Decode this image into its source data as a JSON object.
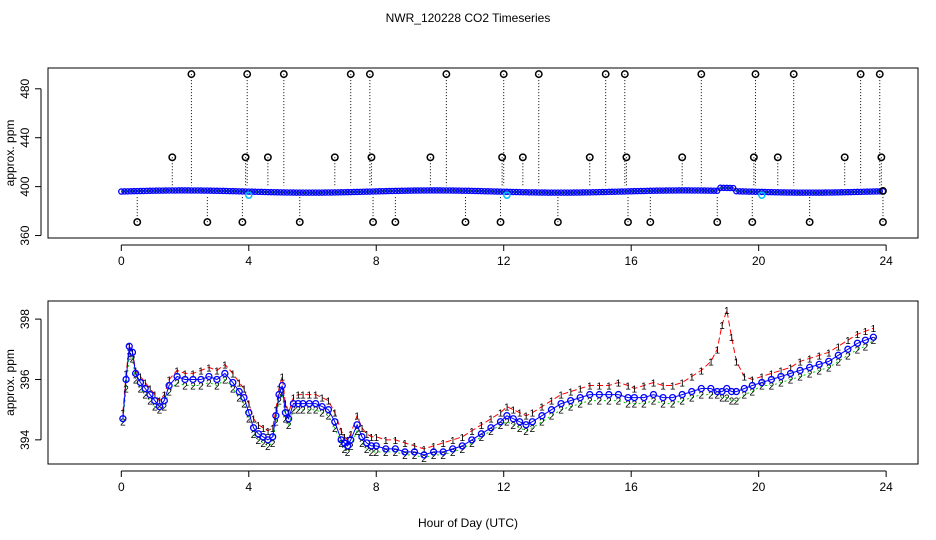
{
  "title": "NWR_120228  CO2 Timeseries",
  "xlabel_shared": "Hour of Day (UTC)",
  "colors": {
    "series1": "#ff0000",
    "series2": "#00cc00",
    "series3": "#0000ff",
    "outlier": "#000000",
    "flag": "#00bfff"
  },
  "chart_data": [
    {
      "type": "line",
      "title": "NWR_120228  CO2 Timeseries",
      "ylabel": "approx. ppm",
      "xlim": [
        -2.3,
        25
      ],
      "ylim": [
        358,
        497
      ],
      "xticks": [
        0,
        4,
        8,
        12,
        16,
        20,
        24
      ],
      "xtick_labels": [
        "0",
        "4",
        "8",
        "12",
        "16",
        "20",
        "24"
      ],
      "yticks": [
        360,
        400,
        440,
        480
      ],
      "ytick_labels": [
        "360",
        "400",
        "440",
        "480"
      ],
      "outlier_baseline": 396,
      "outliers": [
        {
          "x": 0.5,
          "y": 371
        },
        {
          "x": 1.6,
          "y": 424
        },
        {
          "x": 2.2,
          "y": 492
        },
        {
          "x": 2.7,
          "y": 371
        },
        {
          "x": 3.8,
          "y": 371
        },
        {
          "x": 3.9,
          "y": 424
        },
        {
          "x": 3.95,
          "y": 492
        },
        {
          "x": 4.6,
          "y": 424
        },
        {
          "x": 5.1,
          "y": 492
        },
        {
          "x": 5.6,
          "y": 371
        },
        {
          "x": 6.7,
          "y": 424
        },
        {
          "x": 7.2,
          "y": 492
        },
        {
          "x": 7.8,
          "y": 492
        },
        {
          "x": 7.85,
          "y": 424
        },
        {
          "x": 7.9,
          "y": 371
        },
        {
          "x": 8.6,
          "y": 371
        },
        {
          "x": 9.7,
          "y": 424
        },
        {
          "x": 10.2,
          "y": 492
        },
        {
          "x": 10.8,
          "y": 371
        },
        {
          "x": 11.9,
          "y": 371
        },
        {
          "x": 11.95,
          "y": 424
        },
        {
          "x": 12.0,
          "y": 492
        },
        {
          "x": 12.6,
          "y": 424
        },
        {
          "x": 13.1,
          "y": 492
        },
        {
          "x": 13.7,
          "y": 371
        },
        {
          "x": 14.7,
          "y": 424
        },
        {
          "x": 15.2,
          "y": 492
        },
        {
          "x": 15.8,
          "y": 492
        },
        {
          "x": 15.85,
          "y": 424
        },
        {
          "x": 15.9,
          "y": 371
        },
        {
          "x": 16.6,
          "y": 371
        },
        {
          "x": 17.6,
          "y": 424
        },
        {
          "x": 18.2,
          "y": 492
        },
        {
          "x": 18.7,
          "y": 371
        },
        {
          "x": 19.8,
          "y": 371
        },
        {
          "x": 19.85,
          "y": 424
        },
        {
          "x": 19.9,
          "y": 492
        },
        {
          "x": 20.6,
          "y": 424
        },
        {
          "x": 21.1,
          "y": 492
        },
        {
          "x": 21.6,
          "y": 371
        },
        {
          "x": 22.7,
          "y": 424
        },
        {
          "x": 23.2,
          "y": 492
        },
        {
          "x": 23.8,
          "y": 492
        },
        {
          "x": 23.85,
          "y": 424
        },
        {
          "x": 23.9,
          "y": 371
        }
      ],
      "flags": [
        {
          "x": 4.0,
          "y": 393
        },
        {
          "x": 12.1,
          "y": 393
        },
        {
          "x": 20.1,
          "y": 393
        }
      ]
    },
    {
      "type": "line",
      "title": "",
      "ylabel": "approx. ppm",
      "xlabel": "Hour of Day (UTC)",
      "xlim": [
        -2.3,
        25
      ],
      "ylim": [
        393.2,
        398.6
      ],
      "xticks": [
        0,
        4,
        8,
        12,
        16,
        20,
        24
      ],
      "xtick_labels": [
        "0",
        "4",
        "8",
        "12",
        "16",
        "20",
        "24"
      ],
      "yticks": [
        394,
        396,
        398
      ],
      "ytick_labels": [
        "394",
        "396",
        "398"
      ],
      "series_symbols": [
        "1",
        "2",
        "o"
      ],
      "series": [
        {
          "name": "1",
          "x": [
            0.05,
            0.15,
            0.25,
            0.35,
            0.45,
            0.6,
            0.75,
            0.9,
            1.05,
            1.2,
            1.35,
            1.5,
            1.75,
            2.0,
            2.25,
            2.5,
            2.75,
            3.0,
            3.25,
            3.5,
            3.7,
            3.85,
            4.0,
            4.15,
            4.3,
            4.45,
            4.6,
            4.75,
            4.85,
            4.95,
            5.05,
            5.15,
            5.25,
            5.4,
            5.55,
            5.7,
            5.9,
            6.1,
            6.3,
            6.5,
            6.7,
            6.9,
            7.0,
            7.1,
            7.2,
            7.4,
            7.55,
            7.7,
            7.85,
            8.0,
            8.3,
            8.6,
            8.9,
            9.2,
            9.5,
            9.8,
            10.1,
            10.4,
            10.7,
            11.0,
            11.3,
            11.6,
            11.9,
            12.1,
            12.3,
            12.5,
            12.7,
            12.9,
            13.2,
            13.5,
            13.8,
            14.1,
            14.4,
            14.7,
            15.0,
            15.3,
            15.6,
            15.9,
            16.1,
            16.4,
            16.7,
            17.0,
            17.3,
            17.6,
            17.9,
            18.2,
            18.5,
            18.7,
            18.85,
            19.0,
            19.15,
            19.3,
            19.55,
            19.8,
            20.1,
            20.4,
            20.7,
            21.0,
            21.3,
            21.6,
            21.9,
            22.2,
            22.5,
            22.8,
            23.1,
            23.35,
            23.6
          ],
          "values": [
            394.9,
            396.2,
            397.1,
            396.9,
            396.3,
            396.1,
            395.9,
            395.7,
            395.5,
            395.3,
            395.5,
            396.0,
            396.3,
            396.2,
            396.2,
            396.3,
            396.4,
            396.3,
            396.5,
            396.2,
            395.9,
            395.7,
            395.2,
            394.7,
            394.5,
            394.4,
            394.3,
            394.4,
            395.0,
            395.7,
            396.1,
            395.2,
            394.9,
            395.4,
            395.5,
            395.5,
            395.5,
            395.5,
            395.4,
            395.3,
            394.9,
            394.3,
            394.1,
            394.0,
            394.2,
            394.8,
            394.4,
            394.2,
            394.1,
            394.1,
            394.0,
            394.0,
            393.9,
            393.8,
            393.7,
            393.8,
            393.9,
            394.0,
            394.1,
            394.3,
            394.5,
            394.7,
            394.9,
            395.1,
            395.0,
            394.9,
            394.8,
            394.9,
            395.1,
            395.3,
            395.5,
            395.6,
            395.7,
            395.8,
            395.8,
            395.8,
            395.9,
            395.8,
            395.7,
            395.8,
            395.9,
            395.8,
            395.8,
            395.9,
            396.1,
            396.3,
            396.6,
            397.0,
            397.8,
            398.3,
            397.4,
            396.6,
            396.1,
            396.0,
            396.1,
            396.2,
            396.3,
            396.4,
            396.6,
            396.7,
            396.8,
            396.9,
            397.1,
            397.3,
            397.5,
            397.6,
            397.7
          ]
        },
        {
          "name": "2",
          "x": [
            0.05,
            0.15,
            0.25,
            0.35,
            0.45,
            0.6,
            0.75,
            0.9,
            1.05,
            1.2,
            1.35,
            1.5,
            1.75,
            2.0,
            2.25,
            2.5,
            2.75,
            3.0,
            3.25,
            3.5,
            3.7,
            3.85,
            4.0,
            4.15,
            4.3,
            4.45,
            4.6,
            4.75,
            4.85,
            4.95,
            5.05,
            5.15,
            5.25,
            5.4,
            5.55,
            5.7,
            5.9,
            6.1,
            6.3,
            6.5,
            6.7,
            6.9,
            7.0,
            7.1,
            7.2,
            7.4,
            7.55,
            7.7,
            7.85,
            8.0,
            8.3,
            8.6,
            8.9,
            9.2,
            9.5,
            9.8,
            10.1,
            10.4,
            10.7,
            11.0,
            11.3,
            11.6,
            11.9,
            12.1,
            12.3,
            12.5,
            12.7,
            12.9,
            13.2,
            13.5,
            13.8,
            14.1,
            14.4,
            14.7,
            15.0,
            15.3,
            15.6,
            15.9,
            16.1,
            16.4,
            16.7,
            17.0,
            17.3,
            17.6,
            17.9,
            18.2,
            18.5,
            18.7,
            18.85,
            19.0,
            19.15,
            19.3,
            19.55,
            19.8,
            20.1,
            20.4,
            20.7,
            21.0,
            21.3,
            21.6,
            21.9,
            22.2,
            22.5,
            22.8,
            23.1,
            23.35,
            23.6
          ],
          "values": [
            394.6,
            395.7,
            396.8,
            396.7,
            396.0,
            395.7,
            395.5,
            395.3,
            395.1,
            395.0,
            395.1,
            395.6,
            395.9,
            395.8,
            395.8,
            395.8,
            395.9,
            395.8,
            396.0,
            395.7,
            395.4,
            395.2,
            394.7,
            394.2,
            394.0,
            393.9,
            393.8,
            393.9,
            394.6,
            395.3,
            395.6,
            394.7,
            394.5,
            395.0,
            395.0,
            395.0,
            395.0,
            395.0,
            394.9,
            394.8,
            394.4,
            393.9,
            393.7,
            393.6,
            393.8,
            394.3,
            393.9,
            393.7,
            393.6,
            393.6,
            393.6,
            393.6,
            393.5,
            393.5,
            393.4,
            393.5,
            393.5,
            393.6,
            393.7,
            393.9,
            394.1,
            394.3,
            394.5,
            394.6,
            394.5,
            394.4,
            394.3,
            394.4,
            394.6,
            394.8,
            395.0,
            395.1,
            395.2,
            395.3,
            395.3,
            395.3,
            395.3,
            395.2,
            395.2,
            395.2,
            395.3,
            395.2,
            395.2,
            395.3,
            395.4,
            395.5,
            395.5,
            395.5,
            395.4,
            395.4,
            395.3,
            395.3,
            395.5,
            395.6,
            395.8,
            395.8,
            395.9,
            396.0,
            396.1,
            396.2,
            396.3,
            396.4,
            396.6,
            396.8,
            397.0,
            397.1,
            397.3
          ]
        },
        {
          "name": "o",
          "x": [
            0.05,
            0.15,
            0.25,
            0.35,
            0.45,
            0.6,
            0.75,
            0.9,
            1.05,
            1.2,
            1.35,
            1.5,
            1.75,
            2.0,
            2.25,
            2.5,
            2.75,
            3.0,
            3.25,
            3.5,
            3.7,
            3.85,
            4.0,
            4.15,
            4.3,
            4.45,
            4.6,
            4.75,
            4.85,
            4.95,
            5.05,
            5.15,
            5.25,
            5.4,
            5.55,
            5.7,
            5.9,
            6.1,
            6.3,
            6.5,
            6.7,
            6.9,
            7.0,
            7.1,
            7.2,
            7.4,
            7.55,
            7.7,
            7.85,
            8.0,
            8.3,
            8.6,
            8.9,
            9.2,
            9.5,
            9.8,
            10.1,
            10.4,
            10.7,
            11.0,
            11.3,
            11.6,
            11.9,
            12.1,
            12.3,
            12.5,
            12.7,
            12.9,
            13.2,
            13.5,
            13.8,
            14.1,
            14.4,
            14.7,
            15.0,
            15.3,
            15.6,
            15.9,
            16.1,
            16.4,
            16.7,
            17.0,
            17.3,
            17.6,
            17.9,
            18.2,
            18.5,
            18.7,
            18.85,
            19.0,
            19.15,
            19.3,
            19.55,
            19.8,
            20.1,
            20.4,
            20.7,
            21.0,
            21.3,
            21.6,
            21.9,
            22.2,
            22.5,
            22.8,
            23.1,
            23.35,
            23.6
          ],
          "values": [
            394.7,
            396.0,
            397.1,
            396.9,
            396.2,
            395.9,
            395.7,
            395.5,
            395.3,
            395.1,
            395.3,
            395.8,
            396.1,
            396.0,
            396.0,
            396.0,
            396.1,
            396.0,
            396.2,
            395.9,
            395.6,
            395.4,
            394.9,
            394.4,
            394.2,
            394.1,
            394.0,
            394.1,
            394.8,
            395.5,
            395.8,
            394.9,
            394.7,
            395.2,
            395.2,
            395.2,
            395.2,
            395.2,
            395.1,
            395.0,
            394.6,
            394.0,
            393.9,
            393.8,
            394.0,
            394.5,
            394.1,
            393.9,
            393.8,
            393.8,
            393.7,
            393.7,
            393.6,
            393.6,
            393.5,
            393.6,
            393.6,
            393.7,
            393.8,
            394.0,
            394.2,
            394.4,
            394.6,
            394.8,
            394.7,
            394.6,
            394.5,
            394.6,
            394.8,
            395.0,
            395.2,
            395.3,
            395.4,
            395.5,
            395.5,
            395.5,
            395.5,
            395.4,
            395.4,
            395.4,
            395.5,
            395.4,
            395.4,
            395.5,
            395.6,
            395.7,
            395.7,
            395.6,
            395.6,
            395.7,
            395.6,
            395.6,
            395.7,
            395.8,
            395.9,
            396.0,
            396.1,
            396.2,
            396.3,
            396.4,
            396.5,
            396.6,
            396.8,
            397.0,
            397.2,
            397.3,
            397.4
          ]
        }
      ]
    }
  ]
}
